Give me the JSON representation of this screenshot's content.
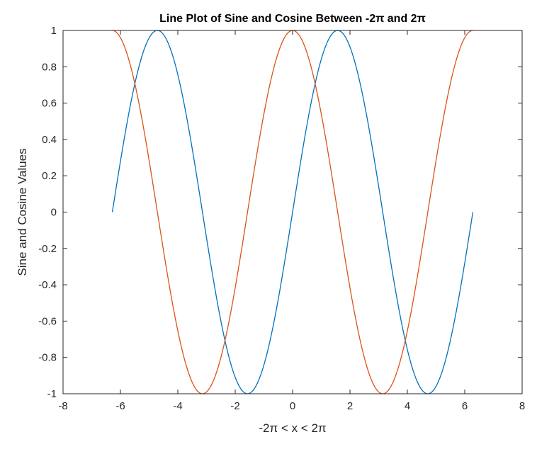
{
  "chart_data": {
    "type": "line",
    "title": "Line Plot of Sine and Cosine Between -2π and 2π",
    "xlabel": "-2π < x < 2π",
    "ylabel": "Sine and Cosine Values",
    "xlim": [
      -8,
      8
    ],
    "ylim": [
      -1,
      1
    ],
    "xticks": [
      -8,
      -6,
      -4,
      -2,
      0,
      2,
      4,
      6,
      8
    ],
    "xtick_labels": [
      "-8",
      "-6",
      "-4",
      "-2",
      "0",
      "2",
      "4",
      "6",
      "8"
    ],
    "yticks": [
      -1,
      -0.8,
      -0.6,
      -0.4,
      -0.2,
      0,
      0.2,
      0.4,
      0.6,
      0.8,
      1
    ],
    "ytick_labels": [
      "-1",
      "-0.8",
      "-0.6",
      "-0.4",
      "-0.2",
      "0",
      "0.2",
      "0.4",
      "0.6",
      "0.8",
      "1"
    ],
    "grid": false,
    "box": true,
    "series": [
      {
        "function": "sin",
        "color": "#0072BD",
        "x": [
          -6.283,
          -5.89,
          -5.498,
          -5.105,
          -4.712,
          -4.32,
          -3.927,
          -3.534,
          -3.142,
          -2.749,
          -2.356,
          -1.963,
          -1.571,
          -1.178,
          -0.785,
          -0.393,
          0,
          0.393,
          0.785,
          1.178,
          1.571,
          1.963,
          2.356,
          2.749,
          3.142,
          3.534,
          3.927,
          4.32,
          4.712,
          5.105,
          5.498,
          5.89,
          6.283
        ],
        "y": [
          0,
          0.383,
          0.707,
          0.924,
          1,
          0.924,
          0.707,
          0.383,
          0,
          -0.383,
          -0.707,
          -0.924,
          -1,
          -0.924,
          -0.707,
          -0.383,
          0,
          0.383,
          0.707,
          0.924,
          1,
          0.924,
          0.707,
          0.383,
          0,
          -0.383,
          -0.707,
          -0.924,
          -1,
          -0.924,
          -0.707,
          -0.383,
          0
        ]
      },
      {
        "function": "cos",
        "color": "#D95319",
        "x": [
          -6.283,
          -5.89,
          -5.498,
          -5.105,
          -4.712,
          -4.32,
          -3.927,
          -3.534,
          -3.142,
          -2.749,
          -2.356,
          -1.963,
          -1.571,
          -1.178,
          -0.785,
          -0.393,
          0,
          0.393,
          0.785,
          1.178,
          1.571,
          1.963,
          2.356,
          2.749,
          3.142,
          3.534,
          3.927,
          4.32,
          4.712,
          5.105,
          5.498,
          5.89,
          6.283
        ],
        "y": [
          1,
          0.924,
          0.707,
          0.383,
          0,
          -0.383,
          -0.707,
          -0.924,
          -1,
          -0.924,
          -0.707,
          -0.383,
          0,
          0.383,
          0.707,
          0.924,
          1,
          0.924,
          0.707,
          0.383,
          0,
          -0.383,
          -0.707,
          -0.924,
          -1,
          -0.924,
          -0.707,
          -0.383,
          0,
          0.383,
          0.707,
          0.924,
          1
        ]
      }
    ]
  }
}
